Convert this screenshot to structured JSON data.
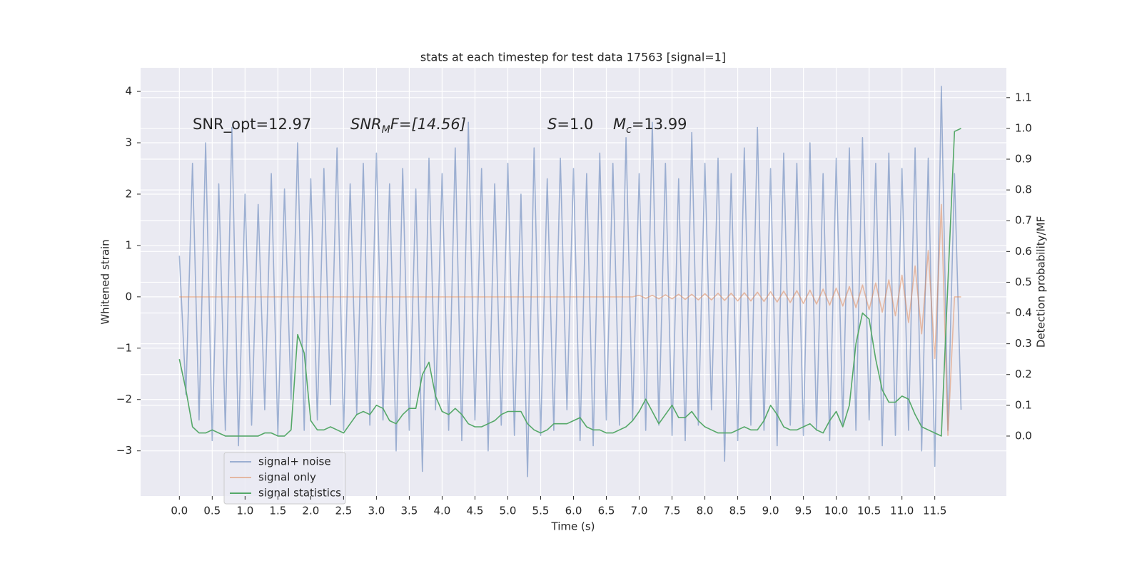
{
  "chart_data": {
    "type": "line",
    "title": "stats at each timestep for test data 17563 [signal=1]",
    "xlabel": "Time (s)",
    "ylabel": "Whitened strain",
    "y2label": "Detection probability/MF",
    "annotations": [
      [
        "SNR_opt=12.97"
      ],
      [
        "SNR",
        "M",
        "F=[14.56]"
      ],
      [
        "S",
        "=1.0"
      ],
      [
        "M",
        "c",
        "=13.99"
      ]
    ],
    "xlim": [
      -0.59,
      12.59
    ],
    "ylim": [
      -3.88,
      4.46
    ],
    "y2lim": [
      -0.195,
      1.197
    ],
    "xticks": [
      {
        "value": 0,
        "label": "0.0"
      },
      0.5,
      {
        "value": 1,
        "label": "1.0"
      },
      1.5,
      {
        "value": 2,
        "label": "2.0"
      },
      2.5,
      {
        "value": 3,
        "label": "3.0"
      },
      3.5,
      {
        "value": 4,
        "label": "4.0"
      },
      4.5,
      {
        "value": 5,
        "label": "5.0"
      },
      5.5,
      {
        "value": 6,
        "label": "6.0"
      },
      6.5,
      {
        "value": 7,
        "label": "7.0"
      },
      7.5,
      {
        "value": 8,
        "label": "8.0"
      },
      8.5,
      {
        "value": 9,
        "label": "9.0"
      },
      9.5,
      {
        "value": 10,
        "label": "10.0"
      },
      10.5,
      {
        "value": 11,
        "label": "11.0"
      },
      11.5
    ],
    "yticks": [
      {
        "value": -3,
        "label": "−3"
      },
      {
        "value": -2,
        "label": "−2"
      },
      {
        "value": -1,
        "label": "−1"
      },
      0,
      1,
      2,
      3,
      4
    ],
    "y2ticks": [
      {
        "value": 0,
        "label": "0.0"
      },
      0.1,
      0.2,
      0.3,
      0.4,
      0.5,
      0.6,
      0.7,
      0.8,
      0.9,
      {
        "value": 1,
        "label": "1.0"
      },
      1.1
    ],
    "grid": true,
    "legend": "lower left",
    "x": [
      0,
      0.1,
      0.2,
      0.3,
      0.4,
      0.5,
      0.6,
      0.7,
      0.8,
      0.9,
      1,
      1.1,
      1.2,
      1.3,
      1.4,
      1.5,
      1.6,
      1.7,
      1.8,
      1.9,
      2,
      2.1,
      2.2,
      2.3,
      2.4,
      2.5,
      2.6,
      2.7,
      2.8,
      2.9,
      3,
      3.1,
      3.2,
      3.3,
      3.4,
      3.5,
      3.6,
      3.7,
      3.8,
      3.9,
      4,
      4.1,
      4.2,
      4.3,
      4.4,
      4.5,
      4.6,
      4.7,
      4.8,
      4.9,
      5,
      5.1,
      5.2,
      5.3,
      5.4,
      5.5,
      5.6,
      5.7,
      5.8,
      5.9,
      6,
      6.1,
      6.2,
      6.3,
      6.4,
      6.5,
      6.6,
      6.7,
      6.8,
      6.9,
      7,
      7.1,
      7.2,
      7.3,
      7.4,
      7.5,
      7.6,
      7.7,
      7.8,
      7.9,
      8,
      8.1,
      8.2,
      8.3,
      8.4,
      8.5,
      8.6,
      8.7,
      8.8,
      8.9,
      9,
      9.1,
      9.2,
      9.3,
      9.4,
      9.5,
      9.6,
      9.7,
      9.8,
      9.9,
      10,
      10.1,
      10.2,
      10.3,
      10.4,
      10.5,
      10.6,
      10.7,
      10.8,
      10.9,
      11,
      11.1,
      11.2,
      11.3,
      11.4,
      11.5,
      11.6,
      11.7,
      11.8,
      11.9
    ],
    "series": [
      {
        "name": "signal+ noise",
        "color": "#4c72b0",
        "opacity": 0.5,
        "values": [
          0.8,
          -1.9,
          2.6,
          -2.4,
          3.0,
          -2.8,
          2.2,
          -2.6,
          3.3,
          -2.9,
          2.0,
          -2.5,
          1.8,
          -2.2,
          2.4,
          -2.7,
          2.1,
          -2.0,
          3.0,
          -2.6,
          2.3,
          -2.4,
          2.5,
          -2.1,
          2.9,
          -2.6,
          2.2,
          -2.3,
          2.6,
          -2.5,
          2.8,
          -2.4,
          2.2,
          -3.0,
          2.5,
          -2.6,
          2.1,
          -3.4,
          2.7,
          -2.2,
          2.4,
          -2.6,
          2.9,
          -2.8,
          3.4,
          -2.4,
          2.5,
          -3.0,
          2.2,
          -2.5,
          2.6,
          -2.7,
          2.0,
          -3.5,
          2.9,
          -2.7,
          2.3,
          -2.6,
          2.7,
          -2.2,
          2.5,
          -2.8,
          2.4,
          -2.9,
          2.8,
          -2.4,
          2.6,
          -2.5,
          3.1,
          -2.4,
          2.4,
          -2.6,
          3.4,
          -2.5,
          2.6,
          -2.7,
          2.3,
          -2.8,
          3.2,
          -2.5,
          2.6,
          -2.2,
          2.7,
          -3.2,
          2.4,
          -2.8,
          2.9,
          -2.5,
          3.3,
          -2.6,
          2.5,
          -2.9,
          2.8,
          -2.5,
          2.6,
          -2.7,
          3.0,
          -2.6,
          2.4,
          -2.8,
          2.7,
          -2.5,
          2.9,
          -2.6,
          3.1,
          -2.4,
          2.6,
          -2.9,
          2.8,
          -2.7,
          2.5,
          -2.6,
          2.9,
          -3.0,
          2.7,
          -3.3,
          4.1,
          -2.6,
          2.4,
          -2.2
        ]
      },
      {
        "name": "signal only",
        "color": "#dd8452",
        "opacity": 0.5,
        "values": [
          0,
          0,
          0,
          0,
          0,
          0,
          0,
          0,
          0,
          0,
          0,
          0,
          0,
          0,
          0,
          0,
          0,
          0,
          0,
          0,
          0,
          0,
          0,
          0,
          0,
          0,
          0,
          0,
          0,
          0,
          0,
          0,
          0,
          0,
          0,
          0,
          0,
          0,
          0,
          0,
          0,
          0,
          0,
          0,
          0,
          0,
          0,
          0,
          0,
          0,
          0,
          0,
          0,
          0,
          0,
          0,
          0,
          0,
          0,
          0,
          0,
          0,
          0,
          0,
          0,
          0,
          0,
          0,
          0,
          0,
          0.03,
          -0.03,
          0.03,
          -0.04,
          0.04,
          -0.04,
          0.05,
          -0.05,
          0.05,
          -0.06,
          0.06,
          -0.06,
          0.07,
          -0.07,
          0.07,
          -0.08,
          0.08,
          -0.08,
          0.09,
          -0.09,
          0.1,
          -0.1,
          0.11,
          -0.11,
          0.12,
          -0.13,
          0.13,
          -0.14,
          0.15,
          -0.16,
          0.17,
          -0.18,
          0.2,
          -0.21,
          0.23,
          -0.25,
          0.27,
          -0.3,
          0.33,
          -0.37,
          0.42,
          -0.5,
          0.6,
          -0.72,
          0.9,
          -1.2,
          1.8,
          -2.7,
          0.0,
          0.0
        ]
      },
      {
        "name": "signal statistics",
        "color": "#55a868",
        "opacity": 1,
        "axis": "y2",
        "values": [
          0.25,
          0.15,
          0.03,
          0.01,
          0.01,
          0.02,
          0.01,
          0.0,
          0.0,
          0.0,
          0.0,
          0.0,
          0.0,
          0.01,
          0.01,
          0.0,
          0.0,
          0.02,
          0.33,
          0.27,
          0.05,
          0.02,
          0.02,
          0.03,
          0.02,
          0.01,
          0.04,
          0.07,
          0.08,
          0.07,
          0.1,
          0.09,
          0.05,
          0.04,
          0.07,
          0.09,
          0.09,
          0.2,
          0.24,
          0.13,
          0.08,
          0.07,
          0.09,
          0.07,
          0.04,
          0.03,
          0.03,
          0.04,
          0.05,
          0.07,
          0.08,
          0.08,
          0.08,
          0.04,
          0.02,
          0.01,
          0.02,
          0.04,
          0.04,
          0.04,
          0.05,
          0.06,
          0.03,
          0.02,
          0.02,
          0.01,
          0.01,
          0.02,
          0.03,
          0.05,
          0.08,
          0.12,
          0.08,
          0.04,
          0.07,
          0.1,
          0.06,
          0.06,
          0.08,
          0.05,
          0.03,
          0.02,
          0.01,
          0.01,
          0.01,
          0.02,
          0.03,
          0.02,
          0.02,
          0.05,
          0.1,
          0.07,
          0.03,
          0.02,
          0.02,
          0.03,
          0.04,
          0.02,
          0.01,
          0.05,
          0.08,
          0.03,
          0.1,
          0.3,
          0.4,
          0.38,
          0.25,
          0.15,
          0.11,
          0.11,
          0.13,
          0.12,
          0.07,
          0.03,
          0.02,
          0.01,
          0.0,
          0.5,
          0.99,
          1.0
        ]
      }
    ]
  }
}
